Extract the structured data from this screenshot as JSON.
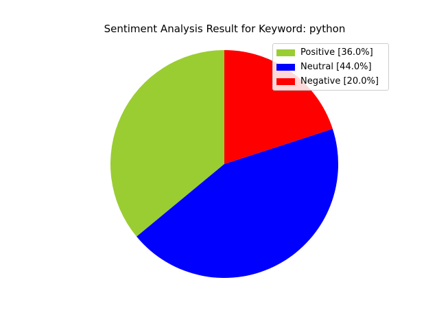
{
  "chart_data": {
    "type": "pie",
    "title": "Sentiment Analysis Result for Keyword: python",
    "start_angle_deg": 90,
    "direction": "counterclockwise",
    "legend_position": "top-right",
    "slices": [
      {
        "label": "Positive [36.0%]",
        "value": 36.0,
        "color": "#9acd32"
      },
      {
        "label": "Neutral [44.0%]",
        "value": 44.0,
        "color": "#0000ff"
      },
      {
        "label": "Negative [20.0%]",
        "value": 20.0,
        "color": "#ff0000"
      }
    ]
  }
}
